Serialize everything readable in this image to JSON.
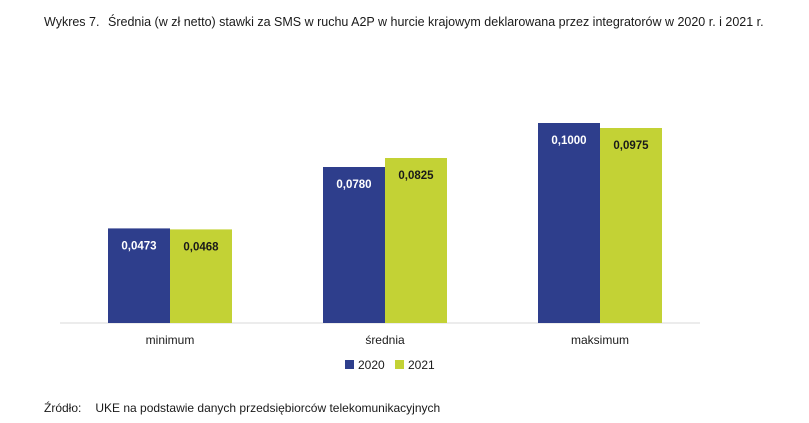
{
  "caption": {
    "number": "Wykres 7.",
    "title": "Średnia (w zł netto) stawki za SMS w ruchu A2P w hurcie krajowym deklarowana przez integratorów w 2020 r. i 2021 r."
  },
  "source": {
    "label": "Źródło:",
    "text": "UKE na podstawie danych przedsiębiorców telekomunikacyjnych"
  },
  "chart_data": {
    "type": "bar",
    "categories": [
      "minimum",
      "średnia",
      "maksimum"
    ],
    "series": [
      {
        "name": "2020",
        "values": [
          0.0473,
          0.078,
          0.1
        ],
        "labels": [
          "0,0473",
          "0,0780",
          "0,1000"
        ],
        "color": "#2e3e8c"
      },
      {
        "name": "2021",
        "values": [
          0.0468,
          0.0825,
          0.0975
        ],
        "labels": [
          "0,0468",
          "0,0825",
          "0,0975"
        ],
        "color": "#c3d235"
      }
    ],
    "ylim": [
      0,
      0.12
    ],
    "grid": false,
    "legend": "bottom"
  }
}
